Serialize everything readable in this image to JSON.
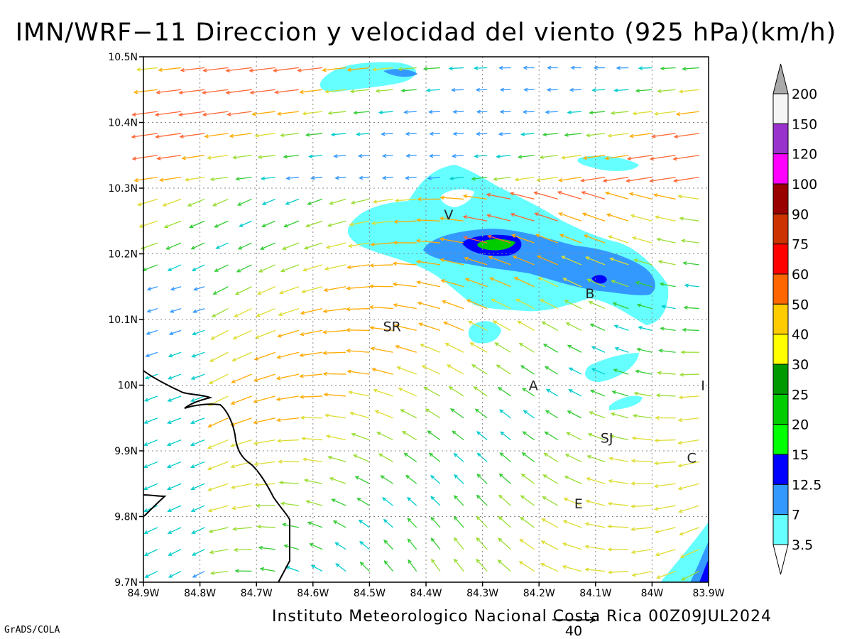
{
  "title": "IMN/WRF−11 Direccion y velocidad del viento (925 hPa)(km/h)",
  "footer": "Instituto Meteorologico Nacional Costa Rica 00Z09JUL2024",
  "software_label": "GrADS/COLA",
  "reference_vector_value": "40",
  "map": {
    "lon_range": [
      -84.9,
      -83.9
    ],
    "lat_range": [
      9.7,
      10.5
    ],
    "x_ticks": [
      "84.9W",
      "84.8W",
      "84.7W",
      "84.6W",
      "84.5W",
      "84.4W",
      "84.3W",
      "84.2W",
      "84.1W",
      "84W",
      "83.9W"
    ],
    "y_ticks": [
      "10.5N",
      "10.4N",
      "10.3N",
      "10.2N",
      "10.1N",
      "10N",
      "9.9N",
      "9.8N",
      "9.7N"
    ],
    "grid": true,
    "cities": [
      {
        "label": "V",
        "lon": -84.36,
        "lat": 10.26
      },
      {
        "label": "B",
        "lon": -84.11,
        "lat": 10.14
      },
      {
        "label": "SR",
        "lon": -84.46,
        "lat": 10.09
      },
      {
        "label": "A",
        "lon": -84.21,
        "lat": 10.0
      },
      {
        "label": "I",
        "lon": -83.91,
        "lat": 10.0
      },
      {
        "label": "SJ",
        "lon": -84.08,
        "lat": 9.92
      },
      {
        "label": "C",
        "lon": -83.93,
        "lat": 9.89
      },
      {
        "label": "E",
        "lon": -84.13,
        "lat": 9.82
      }
    ]
  },
  "colorbar": {
    "labels": [
      "200",
      "150",
      "120",
      "100",
      "90",
      "75",
      "60",
      "50",
      "40",
      "30",
      "25",
      "20",
      "15",
      "12.5",
      "7",
      "3.5"
    ],
    "colors": [
      "#a9a9a9",
      "#f5f5f5",
      "#9932cc",
      "#ff00ff",
      "#990000",
      "#cc3300",
      "#ff0000",
      "#ff6600",
      "#ffcc00",
      "#ffff00",
      "#009900",
      "#00cc00",
      "#00ff00",
      "#0000ff",
      "#3399ff",
      "#66ffff",
      "#ffffff"
    ]
  },
  "speed_palette": [
    "#9932cc",
    "#3333ff",
    "#3399ff",
    "#00cccc",
    "#33cc33",
    "#99dd33",
    "#dddd33",
    "#ffaa00",
    "#ff6633",
    "#ff0033"
  ]
}
